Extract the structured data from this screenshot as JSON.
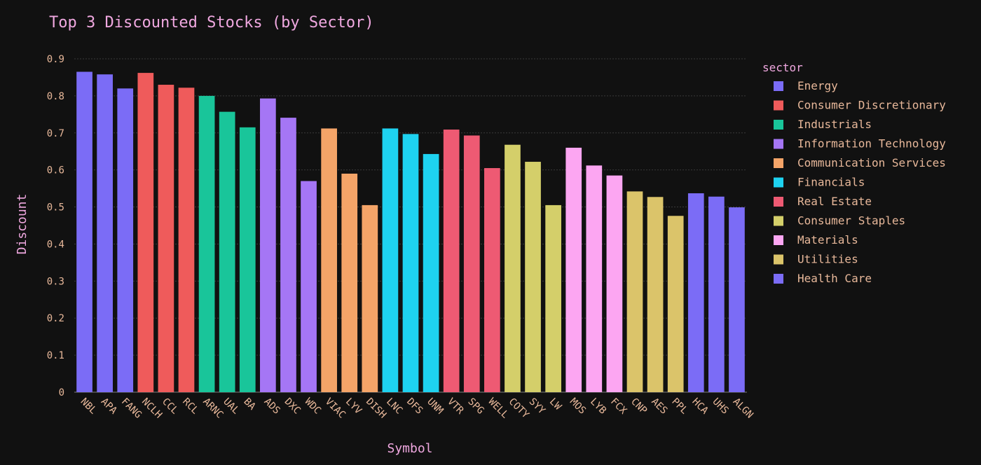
{
  "chart_data": {
    "type": "bar",
    "title": "Top 3 Discounted Stocks (by Sector)",
    "xlabel": "Symbol",
    "ylabel": "Discount",
    "ylim": [
      0,
      0.9
    ],
    "yticks": [
      "0",
      "0.1",
      "0.2",
      "0.3",
      "0.4",
      "0.5",
      "0.6",
      "0.7",
      "0.8",
      "0.9"
    ],
    "grid": true,
    "legend_title": "sector",
    "legend_position": "right",
    "categories": [
      "NBL",
      "APA",
      "FANG",
      "NCLH",
      "CCL",
      "RCL",
      "ARNC",
      "UAL",
      "BA",
      "ADS",
      "DXC",
      "WDC",
      "VIAC",
      "LYV",
      "DISH",
      "LNC",
      "DFS",
      "UNM",
      "VTR",
      "SPG",
      "WELL",
      "COTY",
      "SYY",
      "LW",
      "MOS",
      "LYB",
      "FCX",
      "CNP",
      "AES",
      "PPL",
      "HCA",
      "UHS",
      "ALGN"
    ],
    "series": [
      {
        "name": "Energy",
        "color": "#7b6cf6",
        "x": [
          "NBL",
          "APA",
          "FANG"
        ],
        "values": [
          0.865,
          0.858,
          0.82
        ]
      },
      {
        "name": "Consumer Discretionary",
        "color": "#ef5b5b",
        "x": [
          "NCLH",
          "CCL",
          "RCL"
        ],
        "values": [
          0.862,
          0.83,
          0.822
        ]
      },
      {
        "name": "Industrials",
        "color": "#19c59a",
        "x": [
          "ARNC",
          "UAL",
          "BA"
        ],
        "values": [
          0.8,
          0.757,
          0.715
        ]
      },
      {
        "name": "Information Technology",
        "color": "#a576f5",
        "x": [
          "ADS",
          "DXC",
          "WDC"
        ],
        "values": [
          0.793,
          0.741,
          0.57
        ]
      },
      {
        "name": "Communication Services",
        "color": "#f4a468",
        "x": [
          "VIAC",
          "LYV",
          "DISH"
        ],
        "values": [
          0.712,
          0.59,
          0.505
        ]
      },
      {
        "name": "Financials",
        "color": "#1ed2f0",
        "x": [
          "LNC",
          "DFS",
          "UNM"
        ],
        "values": [
          0.712,
          0.697,
          0.643
        ]
      },
      {
        "name": "Real Estate",
        "color": "#ee5a73",
        "x": [
          "VTR",
          "SPG",
          "WELL"
        ],
        "values": [
          0.709,
          0.693,
          0.605
        ]
      },
      {
        "name": "Consumer Staples",
        "color": "#d4cf6a",
        "x": [
          "COTY",
          "SYY",
          "LW"
        ],
        "values": [
          0.668,
          0.622,
          0.505
        ]
      },
      {
        "name": "Materials",
        "color": "#fca6f2",
        "x": [
          "MOS",
          "LYB",
          "FCX"
        ],
        "values": [
          0.66,
          0.612,
          0.585
        ]
      },
      {
        "name": "Utilities",
        "color": "#dbc46a",
        "x": [
          "CNP",
          "AES",
          "PPL"
        ],
        "values": [
          0.542,
          0.527,
          0.476
        ]
      },
      {
        "name": "Health Care",
        "color": "#7b6cf6",
        "x": [
          "HCA",
          "UHS",
          "ALGN"
        ],
        "values": [
          0.537,
          0.528,
          0.499
        ]
      }
    ]
  }
}
